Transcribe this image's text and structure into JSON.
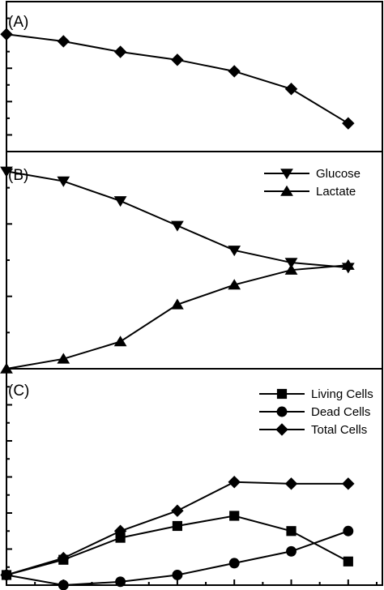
{
  "figure": {
    "panels": [
      {
        "label": "(A)"
      },
      {
        "label": "(B)"
      },
      {
        "label": "(C)"
      }
    ]
  },
  "chart_data": [
    {
      "panel": "(A)",
      "type": "line",
      "x": [
        0,
        1,
        2,
        3,
        4,
        5,
        6
      ],
      "series": [
        {
          "marker": "diamond",
          "values": [
            10.3,
            9.5,
            8.3,
            7.4,
            6.1,
            4.1,
            0.2
          ]
        }
      ],
      "xlim": [
        0,
        6.6
      ],
      "ylim": [
        -3,
        14
      ],
      "legend": null
    },
    {
      "panel": "(B)",
      "type": "line",
      "x": [
        0,
        1,
        2,
        3,
        4,
        5,
        6
      ],
      "series": [
        {
          "name": "Glucose",
          "marker": "triangle-down",
          "values": [
            4.0,
            3.8,
            3.4,
            2.9,
            2.4,
            2.15,
            2.05
          ]
        },
        {
          "name": "Lactate",
          "marker": "triangle-up",
          "values": [
            0.0,
            0.2,
            0.55,
            1.3,
            1.7,
            2.0,
            2.1
          ]
        }
      ],
      "xlim": [
        0,
        6.6
      ],
      "ylim": [
        0,
        4.4
      ],
      "legend": "top-right"
    },
    {
      "panel": "(C)",
      "type": "line",
      "x": [
        0,
        1,
        2,
        3,
        4,
        5,
        6
      ],
      "series": [
        {
          "name": "Living Cells",
          "marker": "square",
          "values": [
            0.3,
            0.75,
            1.4,
            1.75,
            2.05,
            1.6,
            0.7
          ]
        },
        {
          "name": "Dead Cells",
          "marker": "circle",
          "values": [
            0.3,
            0.0,
            0.1,
            0.3,
            0.65,
            1.0,
            1.6
          ]
        },
        {
          "name": "Total Cells",
          "marker": "diamond",
          "values": [
            0.3,
            0.8,
            1.6,
            2.2,
            3.05,
            3.0,
            3.0
          ]
        }
      ],
      "xlim": [
        0,
        6.6
      ],
      "ylim": [
        0,
        6.4
      ],
      "legend": "top-right"
    }
  ]
}
